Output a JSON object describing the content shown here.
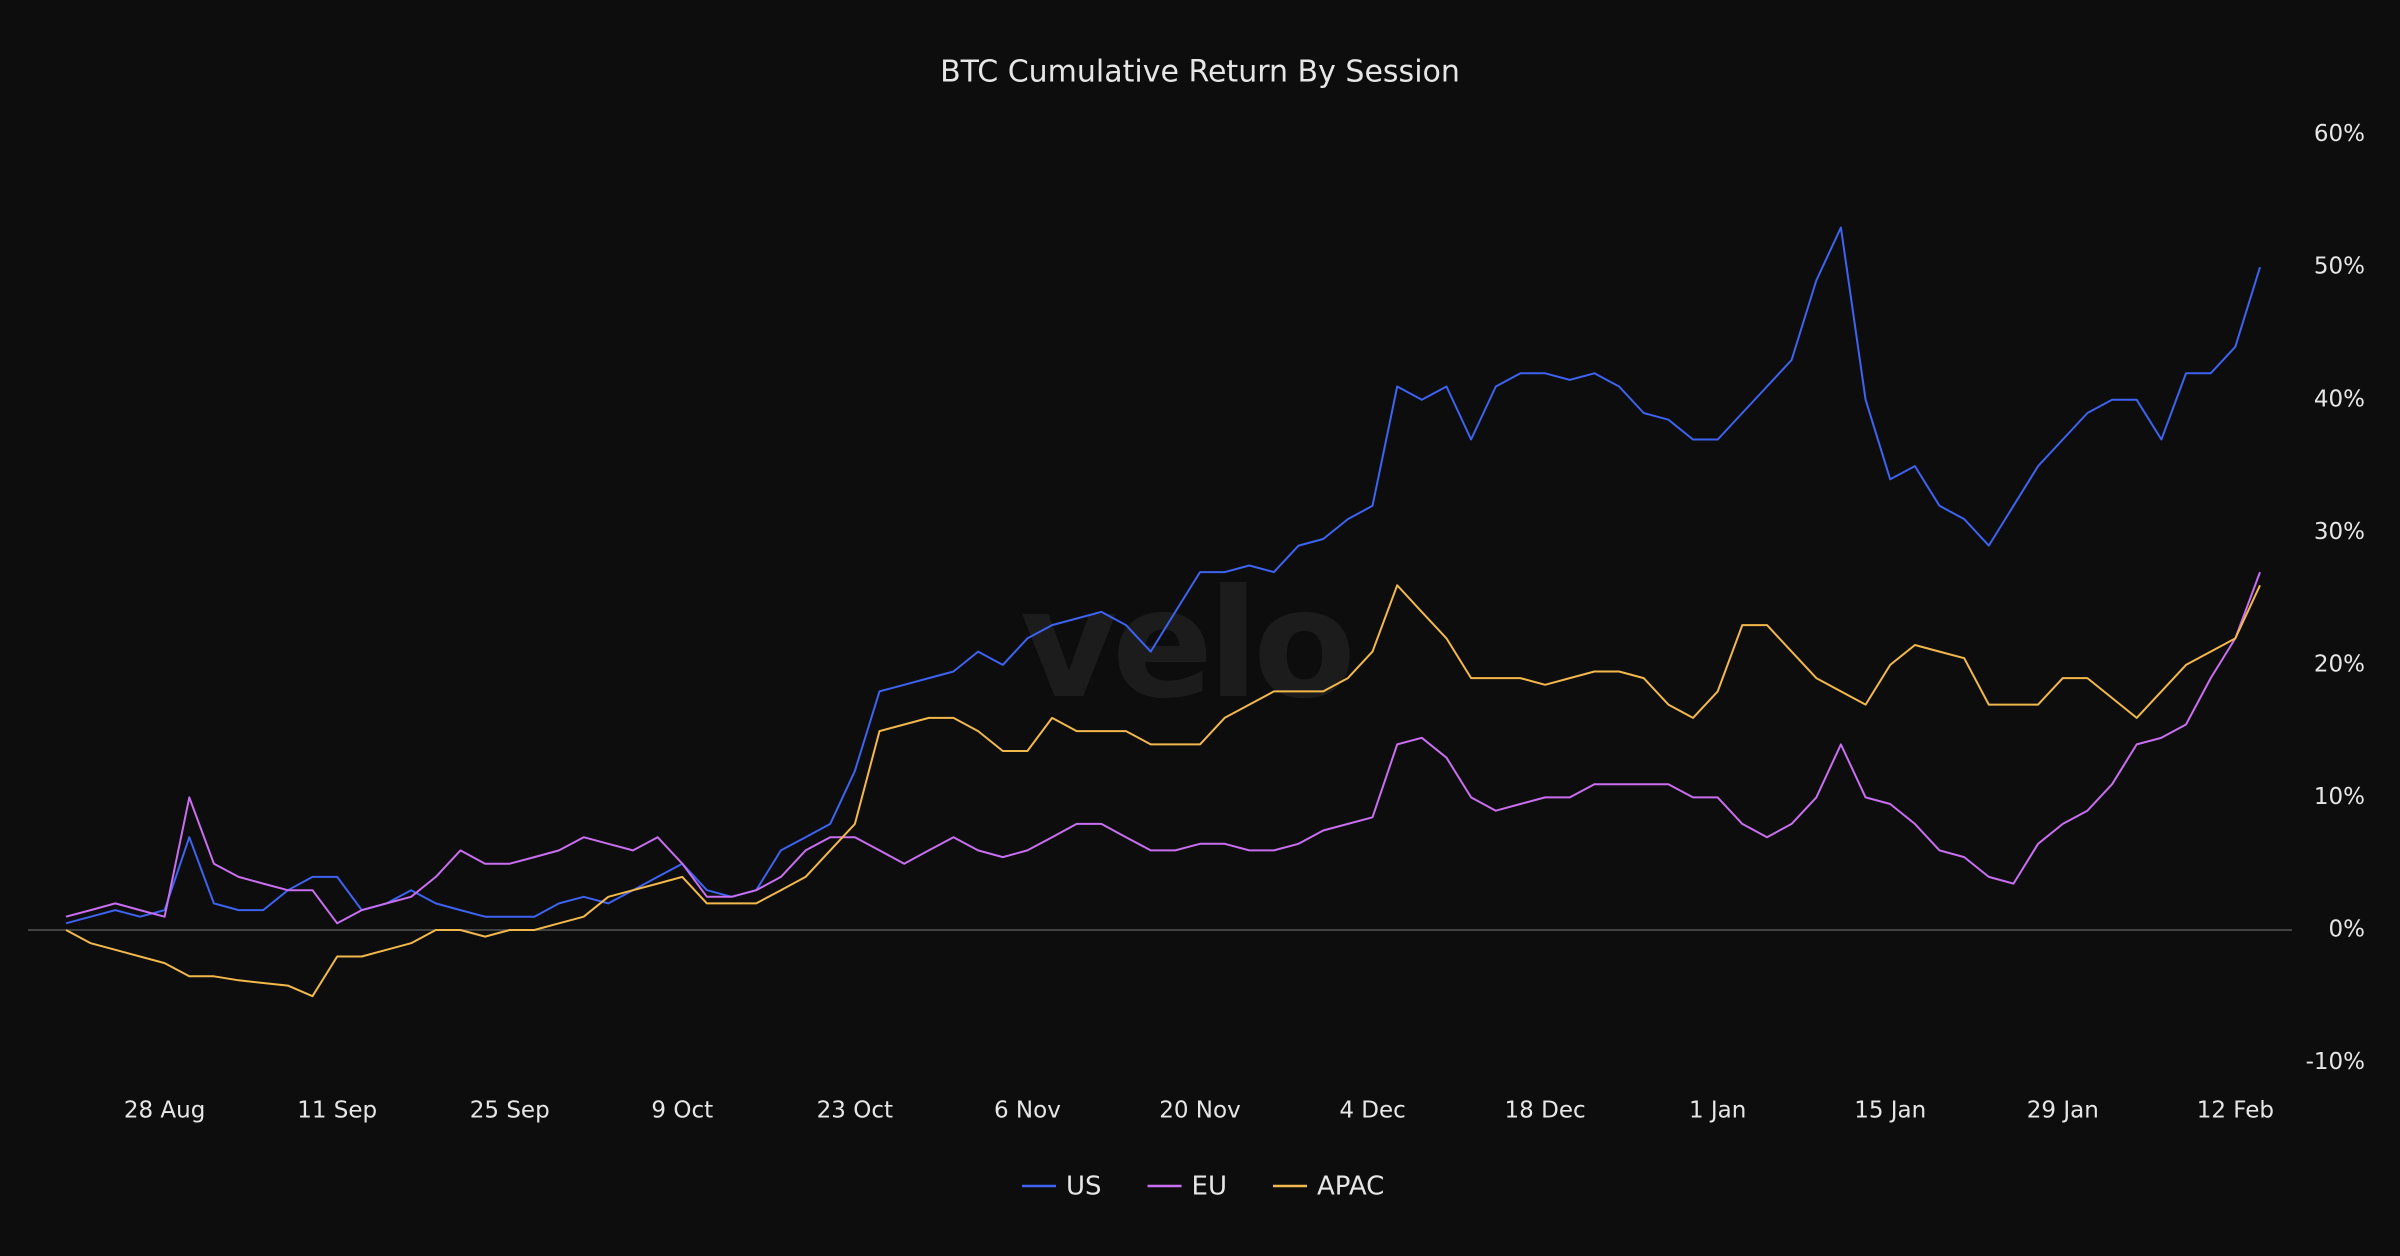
{
  "chart_data": {
    "type": "line",
    "title": "BTC Cumulative Return By Session",
    "watermark": "velo",
    "categories": [
      null,
      null,
      null,
      null,
      "28 Aug",
      null,
      null,
      null,
      null,
      null,
      null,
      "11 Sep",
      null,
      null,
      null,
      null,
      null,
      null,
      "25 Sep",
      null,
      null,
      null,
      null,
      null,
      null,
      "9 Oct",
      null,
      null,
      null,
      null,
      null,
      null,
      "23 Oct",
      null,
      null,
      null,
      null,
      null,
      null,
      "6 Nov",
      null,
      null,
      null,
      null,
      null,
      null,
      "20 Nov",
      null,
      null,
      null,
      null,
      null,
      null,
      "4 Dec",
      null,
      null,
      null,
      null,
      null,
      null,
      "18 Dec",
      null,
      null,
      null,
      null,
      null,
      null,
      "1 Jan",
      null,
      null,
      null,
      null,
      null,
      null,
      "15 Jan",
      null,
      null,
      null,
      null,
      null,
      null,
      "29 Jan",
      null,
      null,
      null,
      null,
      null,
      null,
      "12 Feb",
      null
    ],
    "series": [
      {
        "name": "US",
        "color": "#3d63f0",
        "values": [
          0.5,
          1,
          1.5,
          1,
          1.5,
          7,
          2,
          1.5,
          1.5,
          3,
          4,
          4,
          1.5,
          2,
          3,
          2,
          1.5,
          1,
          1,
          1,
          2,
          2.5,
          2,
          3,
          4,
          5,
          3,
          2.5,
          3,
          6,
          7,
          8,
          12,
          18,
          18.5,
          19,
          19.5,
          21,
          20,
          22,
          23,
          23.5,
          24,
          23,
          21,
          24,
          27,
          27,
          27.5,
          27,
          29,
          29.5,
          31,
          32,
          41,
          40,
          41,
          37,
          41,
          42,
          42,
          41.5,
          42,
          41,
          39,
          38.5,
          37,
          37,
          39,
          41,
          43,
          49,
          53,
          40,
          34,
          35,
          32,
          31,
          29,
          32,
          35,
          37,
          39,
          40,
          40,
          37,
          42,
          42,
          44,
          50
        ]
      },
      {
        "name": "EU",
        "color": "#c86ef0",
        "values": [
          1,
          1.5,
          2,
          1.5,
          1,
          10,
          5,
          4,
          3.5,
          3,
          3,
          0.5,
          1.5,
          2,
          2.5,
          4,
          6,
          5,
          5,
          5.5,
          6,
          7,
          6.5,
          6,
          7,
          5,
          2.5,
          2.5,
          3,
          4,
          6,
          7,
          7,
          6,
          5,
          6,
          7,
          6,
          5.5,
          6,
          7,
          8,
          8,
          7,
          6,
          6,
          6.5,
          6.5,
          6,
          6,
          6.5,
          7.5,
          8,
          8.5,
          14,
          14.5,
          13,
          10,
          9,
          9.5,
          10,
          10,
          11,
          11,
          11,
          11,
          10,
          10,
          8,
          7,
          8,
          10,
          14,
          10,
          9.5,
          8,
          6,
          5.5,
          4,
          3.5,
          6.5,
          8,
          9,
          11,
          14,
          14.5,
          15.5,
          19,
          22,
          27
        ]
      },
      {
        "name": "APAC",
        "color": "#f2b84b",
        "values": [
          0,
          -1,
          -1.5,
          -2,
          -2.5,
          -3.5,
          -3.5,
          -3.8,
          -4,
          -4.2,
          -5,
          -2,
          -2,
          -1.5,
          -1,
          0,
          0,
          -0.5,
          0,
          0,
          0.5,
          1,
          2.5,
          3,
          3.5,
          4,
          2,
          2,
          2,
          3,
          4,
          6,
          8,
          15,
          15.5,
          16,
          16,
          15,
          13.5,
          13.5,
          16,
          15,
          15,
          15,
          14,
          14,
          14,
          16,
          17,
          18,
          18,
          18,
          19,
          21,
          26,
          24,
          22,
          19,
          19,
          19,
          18.5,
          19,
          19.5,
          19.5,
          19,
          17,
          16,
          18,
          23,
          23,
          21,
          19,
          18,
          17,
          20,
          21.5,
          21,
          20.5,
          17,
          17,
          17,
          19,
          19,
          17.5,
          16,
          18,
          20,
          21,
          22,
          26
        ]
      }
    ],
    "ylim": [
      -10,
      60
    ],
    "yticks": [
      {
        "value": -10,
        "label": "-10%"
      },
      {
        "value": 0,
        "label": "0%"
      },
      {
        "value": 10,
        "label": "10%"
      },
      {
        "value": 20,
        "label": "20%"
      },
      {
        "value": 30,
        "label": "30%"
      },
      {
        "value": 40,
        "label": "40%"
      },
      {
        "value": 50,
        "label": "50%"
      },
      {
        "value": 60,
        "label": "60%"
      }
    ],
    "grid": false,
    "legend": "bottom"
  }
}
